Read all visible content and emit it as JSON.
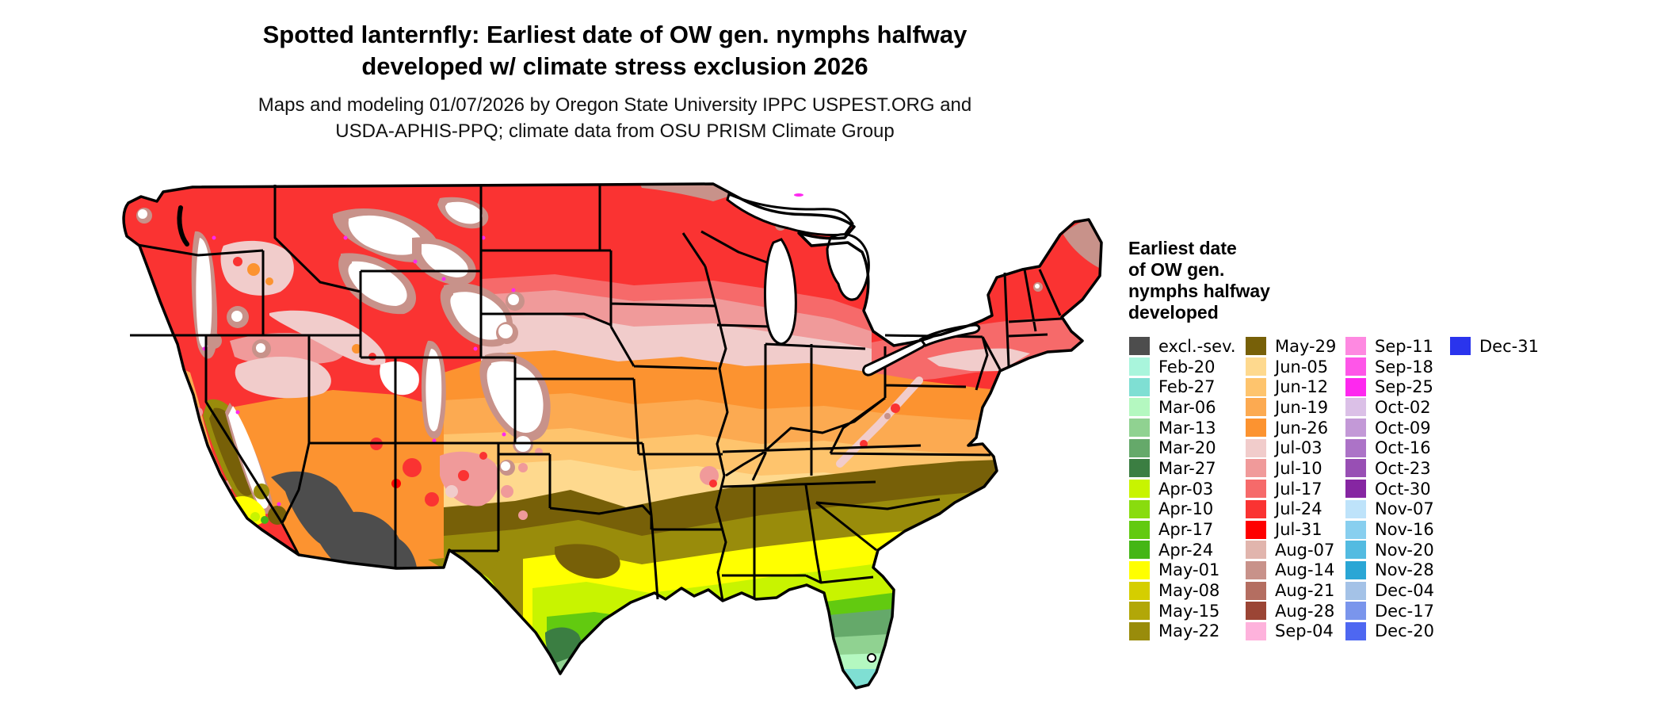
{
  "title": {
    "line1": "Spotted lanternfly: Earliest date of OW gen. nymphs halfway",
    "line2": "developed w/ climate stress exclusion 2026"
  },
  "subtitle": {
    "line1": "Maps and modeling 01/07/2026 by Oregon State University IPPC USPEST.ORG and",
    "line2": "USDA-APHIS-PPQ; climate data from OSU PRISM Climate Group"
  },
  "legend": {
    "title_lines": [
      "Earliest date",
      "of OW gen.",
      "nymphs halfway",
      "developed"
    ],
    "columns": [
      [
        {
          "label": "excl.-sev.",
          "key": "excl"
        },
        {
          "label": "Feb-20",
          "key": "feb20"
        },
        {
          "label": "Feb-27",
          "key": "feb27"
        },
        {
          "label": "Mar-06",
          "key": "mar06"
        },
        {
          "label": "Mar-13",
          "key": "mar13"
        },
        {
          "label": "Mar-20",
          "key": "mar20"
        },
        {
          "label": "Mar-27",
          "key": "mar27"
        },
        {
          "label": "Apr-03",
          "key": "apr03"
        },
        {
          "label": "Apr-10",
          "key": "apr10"
        },
        {
          "label": "Apr-17",
          "key": "apr17"
        },
        {
          "label": "Apr-24",
          "key": "apr24"
        },
        {
          "label": "May-01",
          "key": "may01"
        },
        {
          "label": "May-08",
          "key": "may08"
        },
        {
          "label": "May-15",
          "key": "may15"
        },
        {
          "label": "May-22",
          "key": "may22"
        }
      ],
      [
        {
          "label": "May-29",
          "key": "may29"
        },
        {
          "label": "Jun-05",
          "key": "jun05"
        },
        {
          "label": "Jun-12",
          "key": "jun12"
        },
        {
          "label": "Jun-19",
          "key": "jun19"
        },
        {
          "label": "Jun-26",
          "key": "jun26"
        },
        {
          "label": "Jul-03",
          "key": "jul03"
        },
        {
          "label": "Jul-10",
          "key": "jul10"
        },
        {
          "label": "Jul-17",
          "key": "jul17"
        },
        {
          "label": "Jul-24",
          "key": "jul24"
        },
        {
          "label": "Jul-31",
          "key": "jul31"
        },
        {
          "label": "Aug-07",
          "key": "aug07"
        },
        {
          "label": "Aug-14",
          "key": "aug14"
        },
        {
          "label": "Aug-21",
          "key": "aug21"
        },
        {
          "label": "Aug-28",
          "key": "aug28"
        },
        {
          "label": "Sep-04",
          "key": "sep04"
        }
      ],
      [
        {
          "label": "Sep-11",
          "key": "sep11"
        },
        {
          "label": "Sep-18",
          "key": "sep18"
        },
        {
          "label": "Sep-25",
          "key": "sep25"
        },
        {
          "label": "Oct-02",
          "key": "oct02"
        },
        {
          "label": "Oct-09",
          "key": "oct09"
        },
        {
          "label": "Oct-16",
          "key": "oct16"
        },
        {
          "label": "Oct-23",
          "key": "oct23"
        },
        {
          "label": "Oct-30",
          "key": "oct30"
        },
        {
          "label": "Nov-07",
          "key": "nov07"
        },
        {
          "label": "Nov-16",
          "key": "nov16"
        },
        {
          "label": "Nov-20",
          "key": "nov20"
        },
        {
          "label": "Nov-28",
          "key": "nov28"
        },
        {
          "label": "Dec-04",
          "key": "dec04"
        },
        {
          "label": "Dec-17",
          "key": "dec17"
        },
        {
          "label": "Dec-20",
          "key": "dec20"
        }
      ],
      [
        {
          "label": "Dec-31",
          "key": "dec31"
        }
      ]
    ]
  },
  "palette": {
    "excl": "#4d4d4d",
    "feb20": "#a9f5dc",
    "feb27": "#7fdfd3",
    "mar06": "#b4f8c0",
    "mar13": "#90d291",
    "mar20": "#65a96a",
    "mar27": "#3b7e42",
    "apr03": "#c8f400",
    "apr10": "#89dc0e",
    "apr17": "#62ca10",
    "apr24": "#44b615",
    "may01": "#ffff00",
    "may08": "#d5ce00",
    "may15": "#b2a708",
    "may22": "#998c0b",
    "may29": "#776008",
    "jun05": "#fed98e",
    "jun12": "#fec46d",
    "jun19": "#fcaa51",
    "jun26": "#fc9330",
    "jul03": "#f1cccb",
    "jul10": "#f09a9a",
    "jul17": "#f66a6a",
    "jul24": "#fa3332",
    "jul31": "#fe0000",
    "aug07": "#e1b5ad",
    "aug14": "#c8928a",
    "aug21": "#b46e61",
    "aug28": "#9b4535",
    "sep04": "#feb2dc",
    "sep11": "#fe89e1",
    "sep18": "#fe56e8",
    "sep25": "#fe28ef",
    "oct02": "#dbc0e7",
    "oct09": "#c399d7",
    "oct16": "#ac73c7",
    "oct23": "#984fb4",
    "oct30": "#8626a2",
    "nov07": "#bee3fa",
    "nov16": "#88cfef",
    "nov20": "#53bbe1",
    "nov28": "#2aa6d5",
    "dec04": "#a4c2e7",
    "dec17": "#7a95ec",
    "dec20": "#4e67f1",
    "dec31": "#2a34ed",
    "white": "#ffffff",
    "ink": "#000000"
  }
}
